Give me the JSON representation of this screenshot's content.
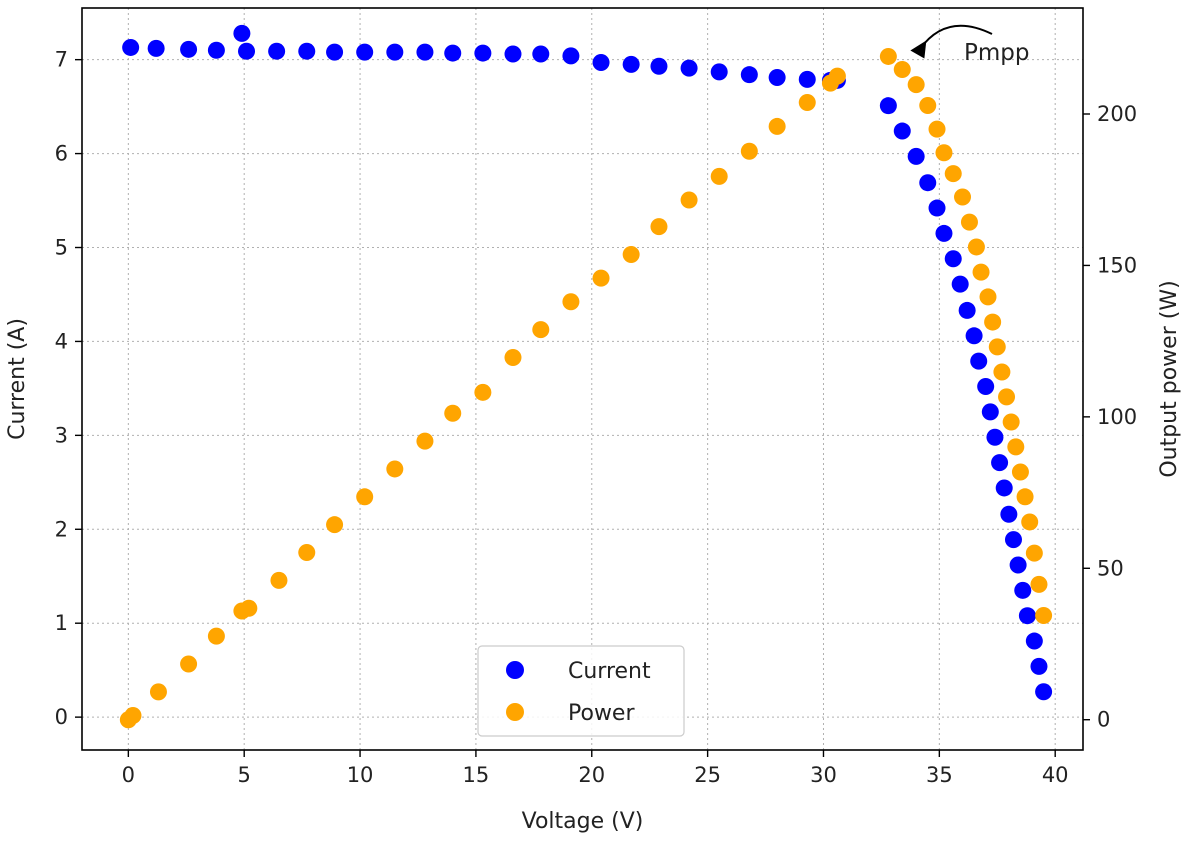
{
  "chart_data": {
    "type": "scatter",
    "title": "",
    "xlabel": "Voltage (V)",
    "ylabel": "Current (A)",
    "y2label": "Output power (W)",
    "xlim": [
      -2,
      41.2
    ],
    "ylim": [
      -0.35,
      7.55
    ],
    "y2lim": [
      -10,
      235
    ],
    "xticks": [
      0,
      5,
      10,
      15,
      20,
      25,
      30,
      35,
      40
    ],
    "yticks": [
      0,
      1,
      2,
      3,
      4,
      5,
      6,
      7
    ],
    "y2ticks": [
      0,
      50,
      100,
      150,
      200
    ],
    "grid": true,
    "legend_position": "bottom-center",
    "colors": {
      "current": "#0000ff",
      "power": "#ffa500"
    },
    "series": [
      {
        "name": "Current",
        "axis": "left",
        "color": "#0000ff",
        "points": [
          [
            0.1,
            7.13
          ],
          [
            1.2,
            7.12
          ],
          [
            2.6,
            7.11
          ],
          [
            3.8,
            7.1
          ],
          [
            4.9,
            7.28
          ],
          [
            5.1,
            7.09
          ],
          [
            6.4,
            7.09
          ],
          [
            7.7,
            7.09
          ],
          [
            8.9,
            7.08
          ],
          [
            10.2,
            7.08
          ],
          [
            11.5,
            7.08
          ],
          [
            12.8,
            7.08
          ],
          [
            14.0,
            7.07
          ],
          [
            15.3,
            7.07
          ],
          [
            16.6,
            7.06
          ],
          [
            17.8,
            7.06
          ],
          [
            19.1,
            7.04
          ],
          [
            20.4,
            6.97
          ],
          [
            21.7,
            6.95
          ],
          [
            22.9,
            6.93
          ],
          [
            24.2,
            6.91
          ],
          [
            25.5,
            6.87
          ],
          [
            26.8,
            6.84
          ],
          [
            28.0,
            6.81
          ],
          [
            29.3,
            6.79
          ],
          [
            30.3,
            6.78
          ],
          [
            30.6,
            6.78
          ],
          [
            32.8,
            6.51
          ],
          [
            33.4,
            6.24
          ],
          [
            34.0,
            5.97
          ],
          [
            34.5,
            5.69
          ],
          [
            34.9,
            5.42
          ],
          [
            35.2,
            5.15
          ],
          [
            35.6,
            4.88
          ],
          [
            35.9,
            4.61
          ],
          [
            36.2,
            4.33
          ],
          [
            36.5,
            4.06
          ],
          [
            36.7,
            3.79
          ],
          [
            37.0,
            3.52
          ],
          [
            37.2,
            3.25
          ],
          [
            37.4,
            2.98
          ],
          [
            37.6,
            2.71
          ],
          [
            37.8,
            2.44
          ],
          [
            38.0,
            2.16
          ],
          [
            38.2,
            1.89
          ],
          [
            38.4,
            1.62
          ],
          [
            38.6,
            1.35
          ],
          [
            38.8,
            1.08
          ],
          [
            39.1,
            0.81
          ],
          [
            39.3,
            0.54
          ],
          [
            39.5,
            0.27
          ]
        ]
      },
      {
        "name": "Power",
        "axis": "right",
        "color": "#ffa500",
        "points": [
          [
            0.0,
            0.0
          ],
          [
            0.2,
            1.4
          ],
          [
            1.3,
            9.2
          ],
          [
            2.6,
            18.4
          ],
          [
            3.8,
            27.6
          ],
          [
            4.9,
            35.9
          ],
          [
            5.2,
            36.8
          ],
          [
            6.5,
            46.0
          ],
          [
            7.7,
            55.2
          ],
          [
            8.9,
            64.4
          ],
          [
            10.2,
            73.6
          ],
          [
            11.5,
            82.8
          ],
          [
            12.8,
            92.0
          ],
          [
            14.0,
            101.2
          ],
          [
            15.3,
            108.1
          ],
          [
            16.6,
            119.6
          ],
          [
            17.8,
            128.8
          ],
          [
            19.1,
            138.0
          ],
          [
            20.4,
            145.8
          ],
          [
            21.7,
            153.6
          ],
          [
            22.9,
            162.8
          ],
          [
            24.2,
            171.6
          ],
          [
            25.5,
            179.4
          ],
          [
            26.8,
            187.7
          ],
          [
            28.0,
            195.9
          ],
          [
            29.3,
            203.8
          ],
          [
            30.3,
            210.2
          ],
          [
            30.6,
            212.5
          ],
          [
            32.8,
            219.0
          ],
          [
            33.4,
            214.7
          ],
          [
            34.0,
            209.7
          ],
          [
            34.5,
            202.8
          ],
          [
            34.9,
            195.0
          ],
          [
            35.2,
            187.2
          ],
          [
            35.6,
            180.3
          ],
          [
            36.0,
            172.6
          ],
          [
            36.3,
            164.3
          ],
          [
            36.6,
            156.1
          ],
          [
            36.8,
            147.8
          ],
          [
            37.1,
            139.6
          ],
          [
            37.3,
            131.3
          ],
          [
            37.5,
            123.1
          ],
          [
            37.7,
            114.8
          ],
          [
            37.9,
            106.6
          ],
          [
            38.1,
            98.3
          ],
          [
            38.3,
            90.1
          ],
          [
            38.5,
            81.8
          ],
          [
            38.7,
            73.6
          ],
          [
            38.9,
            65.3
          ],
          [
            39.1,
            55.0
          ],
          [
            39.3,
            44.7
          ],
          [
            39.5,
            34.4
          ]
        ]
      }
    ],
    "annotations": [
      {
        "text": "Pmpp",
        "target": [
          32.8,
          219.0
        ]
      }
    ]
  }
}
